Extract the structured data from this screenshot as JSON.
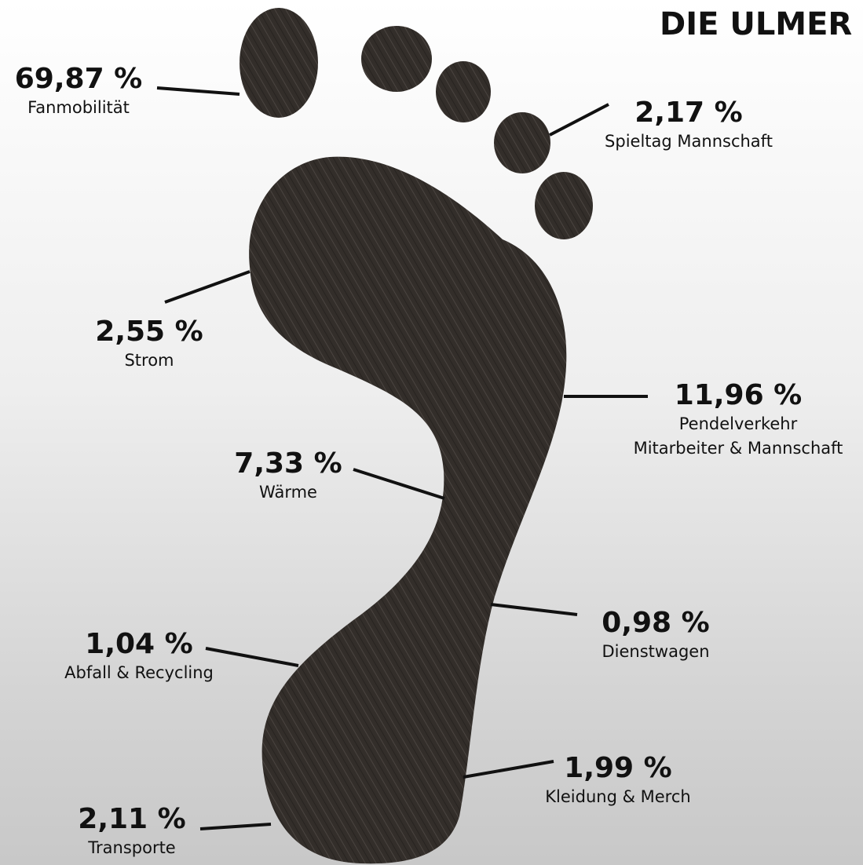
{
  "logo": "DIE ULMER",
  "items": [
    {
      "value": "69,87 %",
      "name": [
        "Fanmobilität"
      ]
    },
    {
      "value": "2,17 %",
      "name": [
        "Spieltag Mannschaft"
      ]
    },
    {
      "value": "2,55 %",
      "name": [
        "Strom"
      ]
    },
    {
      "value": "11,96 %",
      "name": [
        "Pendelverkehr",
        "Mitarbeiter & Mannschaft"
      ]
    },
    {
      "value": "7,33 %",
      "name": [
        "Wärme"
      ]
    },
    {
      "value": "0,98 %",
      "name": [
        "Dienstwagen"
      ]
    },
    {
      "value": "1,04 %",
      "name": [
        "Abfall & Recycling"
      ]
    },
    {
      "value": "2,11 %",
      "name": [
        "Transporte"
      ]
    },
    {
      "value": "1,99 %",
      "name": [
        "Kleidung & Merch"
      ]
    }
  ]
}
